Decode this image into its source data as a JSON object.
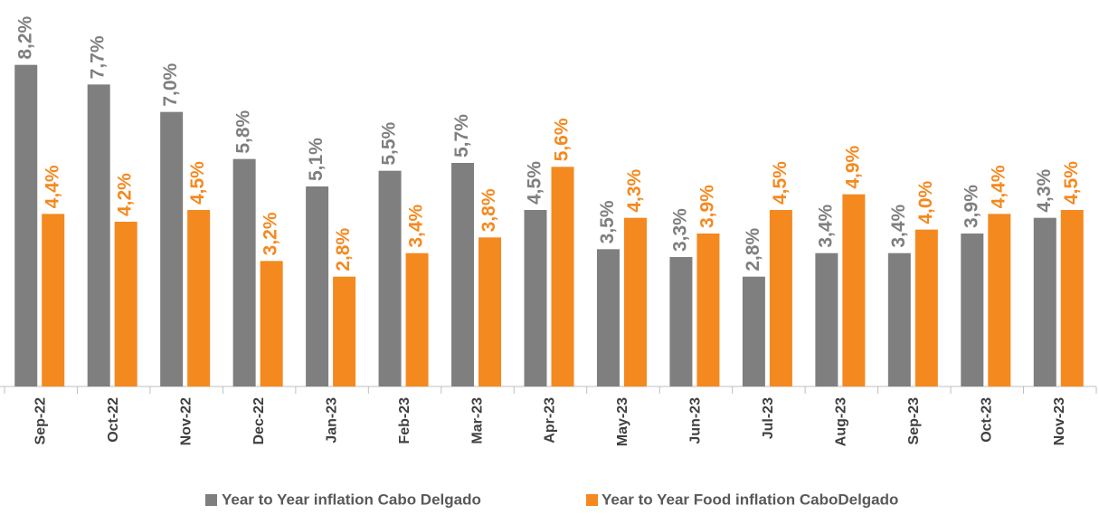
{
  "chart_data": {
    "type": "bar",
    "categories": [
      "Sep-22",
      "Oct-22",
      "Nov-22",
      "Dec-22",
      "Jan-23",
      "Feb-23",
      "Mar-23",
      "Apr-23",
      "May-23",
      "Jun-23",
      "Jul-23",
      "Aug-23",
      "Sep-23",
      "Oct-23",
      "Nov-23"
    ],
    "series": [
      {
        "name": "Year to Year inflation Cabo Delgado",
        "color": "#7f7f7f",
        "values": [
          8.2,
          7.7,
          7.0,
          5.8,
          5.1,
          5.5,
          5.7,
          4.5,
          3.5,
          3.3,
          2.8,
          3.4,
          3.4,
          3.9,
          4.3
        ],
        "value_labels": [
          "8,2%",
          "7,7%",
          "7,0%",
          "5,8%",
          "5,1%",
          "5,5%",
          "5,7%",
          "4,5%",
          "3,5%",
          "3,3%",
          "2,8%",
          "3,4%",
          "3,4%",
          "3,9%",
          "4,3%"
        ]
      },
      {
        "name": "Year to Year Food inflation CaboDelgado",
        "color": "#f4891f",
        "values": [
          4.4,
          4.2,
          4.5,
          3.2,
          2.8,
          3.4,
          3.8,
          5.6,
          4.3,
          3.9,
          4.5,
          4.9,
          4.0,
          4.4,
          4.5
        ],
        "value_labels": [
          "4,4%",
          "4,2%",
          "4,5%",
          "3,2%",
          "2,8%",
          "3,4%",
          "3,8%",
          "5,6%",
          "4,3%",
          "3,9%",
          "4,5%",
          "4,9%",
          "4,0%",
          "4,4%",
          "4,5%"
        ]
      }
    ],
    "ylim": [
      0,
      9
    ],
    "grid": false,
    "legend": "bottom"
  }
}
